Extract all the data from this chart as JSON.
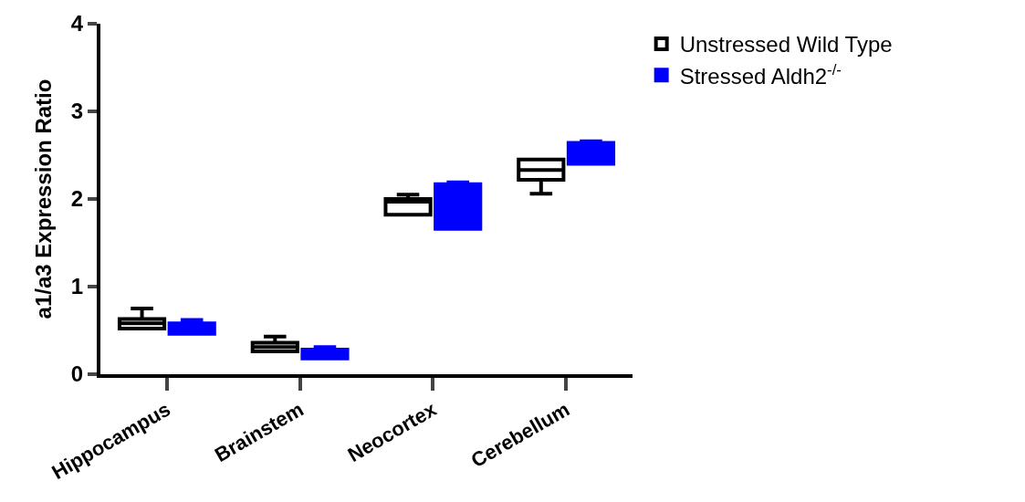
{
  "chart_data": {
    "type": "box",
    "ylabel": "a1/a3 Expression Ratio",
    "categories": [
      "Hippocampus",
      "Brainstem",
      "Neocortex",
      "Cerebellum"
    ],
    "ylim": [
      0,
      4
    ],
    "yticks": [
      0,
      1,
      2,
      3,
      4
    ],
    "legend": "top right",
    "series": [
      {
        "name": "Unstressed Wild Type",
        "color": "#000000",
        "boxes": [
          {
            "low": 0.52,
            "q1": 0.52,
            "median": 0.58,
            "q3": 0.63,
            "high": 0.75
          },
          {
            "low": 0.26,
            "q1": 0.26,
            "median": 0.31,
            "q3": 0.36,
            "high": 0.43
          },
          {
            "low": 1.82,
            "q1": 1.82,
            "median": 1.97,
            "q3": 2.0,
            "high": 2.05
          },
          {
            "low": 2.06,
            "q1": 2.22,
            "median": 2.33,
            "q3": 2.45,
            "high": 2.45
          }
        ]
      },
      {
        "name": "Stressed Aldh2$^{-/-}$",
        "color": "#0000ff",
        "boxes": [
          {
            "low": 0.46,
            "q1": 0.46,
            "median": 0.55,
            "q3": 0.58,
            "high": 0.62
          },
          {
            "low": 0.18,
            "q1": 0.18,
            "median": 0.23,
            "q3": 0.28,
            "high": 0.31
          },
          {
            "low": 1.66,
            "q1": 1.66,
            "median": 1.96,
            "q3": 2.17,
            "high": 2.19
          },
          {
            "low": 2.4,
            "q1": 2.4,
            "median": 2.53,
            "q3": 2.64,
            "high": 2.66
          }
        ]
      }
    ]
  }
}
